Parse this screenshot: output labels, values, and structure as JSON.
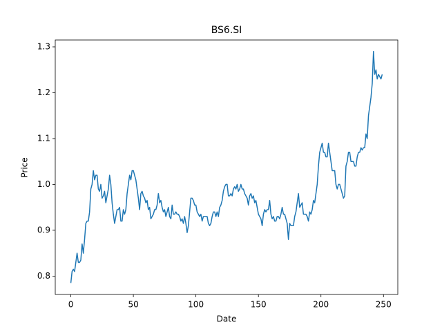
{
  "chart_data": {
    "type": "line",
    "title": "BS6.SI",
    "x_label": "Date",
    "y_label": "Price",
    "x": [
      0,
      1,
      2,
      3,
      4,
      5,
      6,
      7,
      8,
      9,
      10,
      11,
      12,
      13,
      14,
      15,
      16,
      17,
      18,
      19,
      20,
      21,
      22,
      23,
      24,
      25,
      26,
      27,
      28,
      29,
      30,
      31,
      32,
      33,
      34,
      35,
      36,
      37,
      38,
      39,
      40,
      41,
      42,
      43,
      44,
      45,
      46,
      47,
      48,
      49,
      50,
      51,
      52,
      53,
      54,
      55,
      56,
      57,
      58,
      59,
      60,
      61,
      62,
      63,
      64,
      65,
      66,
      67,
      68,
      69,
      70,
      71,
      72,
      73,
      74,
      75,
      76,
      77,
      78,
      79,
      80,
      81,
      82,
      83,
      84,
      85,
      86,
      87,
      88,
      89,
      90,
      91,
      92,
      93,
      94,
      95,
      96,
      97,
      98,
      99,
      100,
      101,
      102,
      103,
      104,
      105,
      106,
      107,
      108,
      109,
      110,
      111,
      112,
      113,
      114,
      115,
      116,
      117,
      118,
      119,
      120,
      121,
      122,
      123,
      124,
      125,
      126,
      127,
      128,
      129,
      130,
      131,
      132,
      133,
      134,
      135,
      136,
      137,
      138,
      139,
      140,
      141,
      142,
      143,
      144,
      145,
      146,
      147,
      148,
      149,
      150,
      151,
      152,
      153,
      154,
      155,
      156,
      157,
      158,
      159,
      160,
      161,
      162,
      163,
      164,
      165,
      166,
      167,
      168,
      169,
      170,
      171,
      172,
      173,
      174,
      175,
      176,
      177,
      178,
      179,
      180,
      181,
      182,
      183,
      184,
      185,
      186,
      187,
      188,
      189,
      190,
      191,
      192,
      193,
      194,
      195,
      196,
      197,
      198,
      199,
      200,
      201,
      202,
      203,
      204,
      205,
      206,
      207,
      208,
      209,
      210,
      211,
      212,
      213,
      214,
      215,
      216,
      217,
      218,
      219,
      220,
      221,
      222,
      223,
      224,
      225,
      226,
      227,
      228,
      229,
      230,
      231,
      232,
      233,
      234,
      235,
      236,
      237,
      238,
      239,
      240,
      241,
      242,
      243,
      244,
      245,
      246,
      247,
      248,
      249
    ],
    "series": [
      {
        "color": "#1f77b4",
        "values": [
          0.785,
          0.81,
          0.815,
          0.81,
          0.83,
          0.85,
          0.83,
          0.83,
          0.835,
          0.87,
          0.85,
          0.88,
          0.915,
          0.92,
          0.92,
          0.94,
          0.99,
          1.0,
          1.03,
          1.01,
          1.02,
          1.02,
          0.99,
          0.985,
          1.0,
          0.97,
          0.975,
          0.985,
          0.96,
          0.975,
          0.99,
          1.02,
          1.0,
          0.96,
          0.935,
          0.915,
          0.93,
          0.945,
          0.945,
          0.95,
          0.92,
          0.92,
          0.945,
          0.935,
          0.945,
          0.98,
          1.0,
          1.02,
          1.01,
          1.03,
          1.03,
          1.02,
          1.01,
          0.99,
          0.97,
          0.945,
          0.98,
          0.985,
          0.975,
          0.97,
          0.96,
          0.965,
          0.945,
          0.95,
          0.925,
          0.93,
          0.935,
          0.945,
          0.945,
          0.955,
          0.98,
          0.96,
          0.965,
          0.95,
          0.94,
          0.945,
          0.93,
          0.94,
          0.95,
          0.93,
          0.925,
          0.955,
          0.935,
          0.935,
          0.94,
          0.935,
          0.935,
          0.93,
          0.92,
          0.925,
          0.915,
          0.93,
          0.915,
          0.895,
          0.91,
          0.94,
          0.97,
          0.97,
          0.965,
          0.955,
          0.955,
          0.94,
          0.935,
          0.93,
          0.935,
          0.92,
          0.93,
          0.93,
          0.93,
          0.93,
          0.915,
          0.91,
          0.915,
          0.93,
          0.94,
          0.94,
          0.93,
          0.94,
          0.93,
          0.95,
          0.955,
          0.965,
          0.985,
          0.995,
          1.0,
          1.0,
          0.975,
          0.975,
          0.98,
          0.975,
          0.99,
          0.995,
          0.99,
          1.0,
          0.985,
          0.99,
          1.0,
          0.99,
          0.99,
          0.98,
          0.975,
          0.97,
          0.955,
          0.975,
          0.98,
          0.97,
          0.975,
          0.96,
          0.965,
          0.95,
          0.935,
          0.93,
          0.925,
          0.91,
          0.935,
          0.945,
          0.94,
          0.945,
          0.945,
          0.965,
          0.935,
          0.925,
          0.93,
          0.92,
          0.92,
          0.93,
          0.93,
          0.925,
          0.935,
          0.95,
          0.935,
          0.935,
          0.925,
          0.915,
          0.88,
          0.915,
          0.91,
          0.91,
          0.91,
          0.93,
          0.94,
          0.96,
          0.98,
          0.95,
          0.955,
          0.96,
          0.935,
          0.935,
          0.935,
          0.93,
          0.92,
          0.94,
          0.935,
          0.945,
          0.965,
          0.96,
          0.98,
          1.0,
          1.04,
          1.07,
          1.08,
          1.09,
          1.07,
          1.07,
          1.06,
          1.06,
          1.09,
          1.07,
          1.05,
          1.03,
          1.03,
          1.03,
          1.0,
          0.99,
          1.0,
          1.0,
          0.99,
          0.98,
          0.97,
          0.975,
          1.04,
          1.05,
          1.07,
          1.07,
          1.05,
          1.05,
          1.05,
          1.04,
          1.04,
          1.06,
          1.07,
          1.07,
          1.08,
          1.075,
          1.08,
          1.08,
          1.11,
          1.1,
          1.15,
          1.17,
          1.19,
          1.22,
          1.29,
          1.24,
          1.25,
          1.23,
          1.24,
          1.235,
          1.23,
          1.24
        ]
      }
    ],
    "xlim": [
      -12.45,
      261.45
    ],
    "xticks": [
      0,
      50,
      100,
      150,
      200,
      250
    ],
    "ylim": [
      0.76,
      1.315
    ],
    "yticks": [
      0.8,
      0.9,
      {
        "value": 1,
        "label": "1.0"
      },
      1.1,
      1.2,
      1.3
    ]
  }
}
